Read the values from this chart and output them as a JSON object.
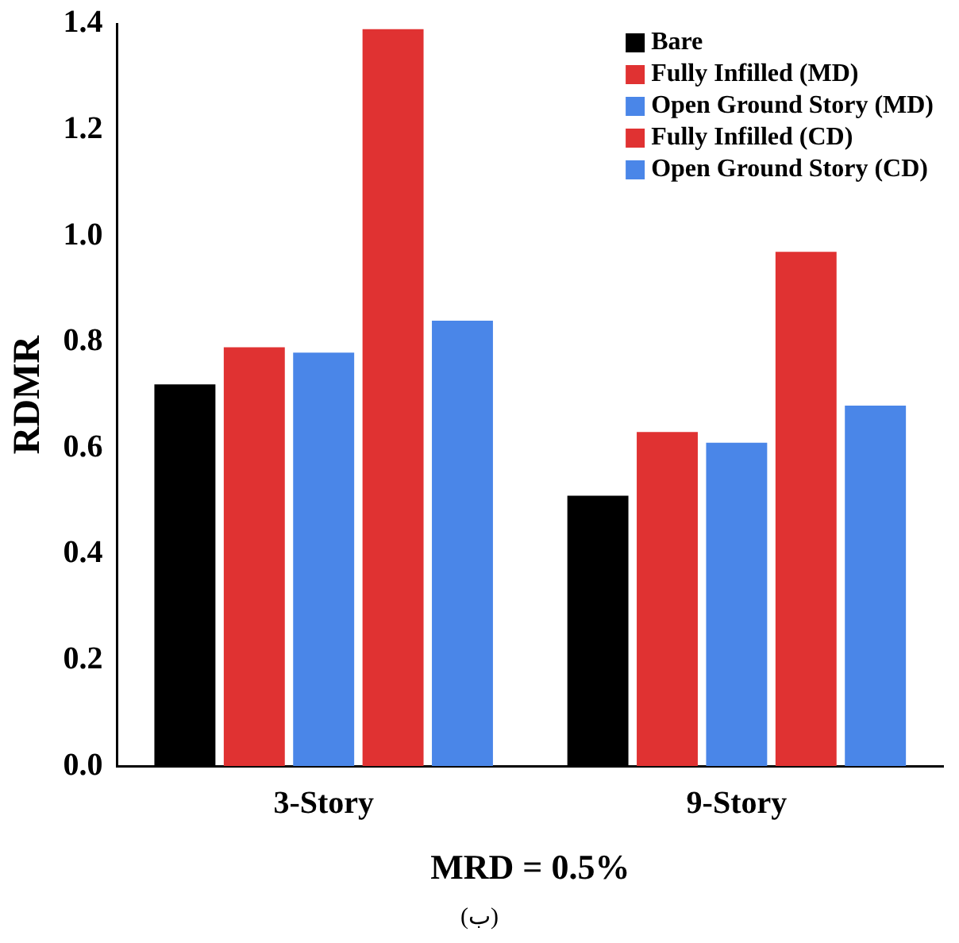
{
  "chart_data": {
    "type": "bar",
    "xlabel": "MRD = 0.5%",
    "ylabel": "RDMR",
    "categories": [
      "3-Story",
      "9-Story"
    ],
    "series": [
      {
        "name": "Bare",
        "color": "#000000",
        "values": [
          0.72,
          0.51
        ]
      },
      {
        "name": "Fully Infilled (MD)",
        "color": "#e03232",
        "values": [
          0.79,
          0.63
        ]
      },
      {
        "name": "Open Ground Story (MD)",
        "color": "#4a86e8",
        "values": [
          0.78,
          0.61
        ]
      },
      {
        "name": "Fully Infilled (CD)",
        "color": "#e03232",
        "values": [
          1.39,
          0.97
        ]
      },
      {
        "name": "Open Ground Story (CD)",
        "color": "#4a86e8",
        "values": [
          0.84,
          0.68
        ]
      }
    ],
    "ylim": [
      0,
      1.4
    ],
    "yticks": [
      {
        "value": 0,
        "label": "0.0"
      },
      {
        "value": 0.2,
        "label": "0.2"
      },
      {
        "value": 0.4,
        "label": "0.4"
      },
      {
        "value": 0.6,
        "label": "0.6"
      },
      {
        "value": 0.8,
        "label": "0.8"
      },
      {
        "value": 1,
        "label": "1.0"
      },
      {
        "value": 1.2,
        "label": "1.2"
      },
      {
        "value": 1.4,
        "label": "1.4"
      }
    ],
    "grid": false,
    "legend": "top right",
    "annotations": [
      "(ب)"
    ]
  }
}
